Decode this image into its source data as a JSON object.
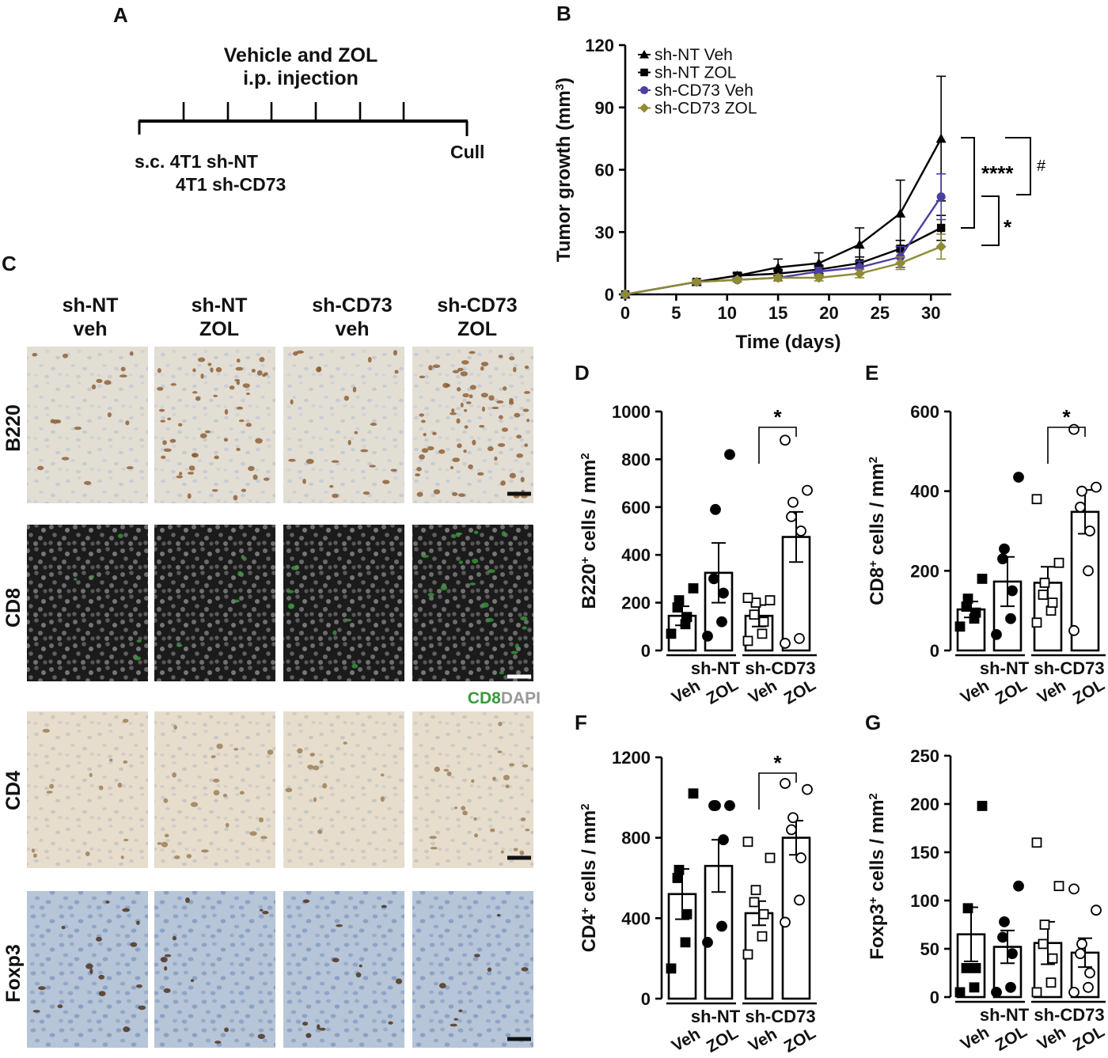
{
  "panel_a": {
    "letter": "A",
    "line1": "Vehicle and ZOL",
    "line2": "i.p. injection",
    "start1": "s.c. 4T1 sh-NT",
    "start2": "4T1 sh-CD73",
    "end": "Cull"
  },
  "panel_c": {
    "letter": "C",
    "columns": [
      {
        "line1": "sh-NT",
        "line2": "veh"
      },
      {
        "line1": "sh-NT",
        "line2": "ZOL"
      },
      {
        "line1": "sh-CD73",
        "line2": "veh"
      },
      {
        "line1": "sh-CD73",
        "line2": "ZOL"
      }
    ],
    "rows": [
      "B220",
      "CD8",
      "CD4",
      "Foxp3"
    ],
    "legend_cd8": "CD8",
    "legend_dapi": "DAPI",
    "colors": {
      "ihc_bg": "#e4e0d8",
      "if_bg": "#1c1c1c",
      "foxp3_bg": "#aebfd6",
      "cd8_green": "#3a9a3a",
      "dapi_text": "#999999"
    }
  },
  "chart_data": [
    {
      "panel": "B",
      "type": "line",
      "xlabel": "Time (days)",
      "ylabel": "Tumor growth (mm",
      "ylabel_sup": "3",
      "ylabel_end": ")",
      "xlim": [
        0,
        32
      ],
      "ylim": [
        0,
        120
      ],
      "xticks": [
        0,
        5,
        10,
        15,
        20,
        25,
        30
      ],
      "yticks": [
        0,
        30,
        60,
        90,
        120
      ],
      "x": [
        0,
        7,
        11,
        15,
        19,
        23,
        27,
        31
      ],
      "legend_position": "top-left",
      "series": [
        {
          "name": "sh-NT Veh",
          "marker": "triangle",
          "color": "#000000",
          "values": [
            0,
            6,
            9,
            13,
            15,
            24,
            39,
            75
          ],
          "err": [
            0,
            1,
            1.5,
            4,
            5,
            8,
            16,
            30
          ]
        },
        {
          "name": "sh-NT ZOL",
          "marker": "square",
          "color": "#000000",
          "values": [
            0,
            6,
            9,
            10,
            12,
            15,
            22,
            32
          ],
          "err": [
            0,
            1,
            1.2,
            2,
            2,
            3,
            4,
            6
          ]
        },
        {
          "name": "sh-CD73 Veh",
          "marker": "circle",
          "color": "#4b3fa0",
          "values": [
            0,
            6,
            7,
            8,
            11,
            13,
            18,
            47
          ],
          "err": [
            0,
            1,
            1,
            1.5,
            2,
            3,
            5,
            11
          ]
        },
        {
          "name": "sh-CD73 ZOL",
          "marker": "diamond",
          "color": "#8f8a34",
          "values": [
            0,
            6,
            7,
            8,
            8,
            10,
            15,
            23
          ],
          "err": [
            0,
            1,
            1,
            1.5,
            1.5,
            2,
            3,
            6
          ]
        }
      ],
      "annotations": [
        "****",
        "#",
        "*"
      ]
    },
    {
      "panel": "D",
      "type": "bar",
      "ylabel": "B220",
      "ylabel_sup": "+",
      "ylabel_end": " cells / mm",
      "ylabel_sup2": "2",
      "ylim": [
        0,
        1000
      ],
      "yticks": [
        0,
        200,
        400,
        600,
        800,
        1000
      ],
      "groups": [
        "sh-NT",
        "sh-CD73"
      ],
      "categories": [
        "Veh",
        "ZOL",
        "Veh",
        "ZOL"
      ],
      "values": [
        145,
        325,
        145,
        475
      ],
      "err": [
        40,
        125,
        45,
        105
      ],
      "points": [
        [
          70,
          110,
          140,
          180,
          210,
          260
        ],
        [
          60,
          120,
          240,
          300,
          590,
          820
        ],
        [
          40,
          70,
          120,
          150,
          200,
          210,
          220
        ],
        [
          30,
          50,
          500,
          560,
          620,
          670,
          880
        ]
      ],
      "markers": [
        "square-filled",
        "circle-filled",
        "square-open",
        "circle-open"
      ],
      "significance": "*"
    },
    {
      "panel": "E",
      "type": "bar",
      "ylabel": "CD8",
      "ylabel_sup": "+",
      "ylabel_end": " cells / mm",
      "ylabel_sup2": "2",
      "ylim": [
        0,
        600
      ],
      "yticks": [
        0,
        200,
        400,
        600
      ],
      "groups": [
        "sh-NT",
        "sh-CD73"
      ],
      "categories": [
        "Veh",
        "ZOL",
        "Veh",
        "ZOL"
      ],
      "values": [
        103,
        173,
        170,
        348
      ],
      "err": [
        20,
        62,
        40,
        55
      ],
      "points": [
        [
          60,
          80,
          95,
          110,
          130,
          180
        ],
        [
          40,
          80,
          150,
          230,
          255,
          435
        ],
        [
          70,
          100,
          120,
          140,
          170,
          220,
          380
        ],
        [
          50,
          200,
          300,
          360,
          400,
          410,
          555
        ]
      ],
      "markers": [
        "square-filled",
        "circle-filled",
        "square-open",
        "circle-open"
      ],
      "significance": "*"
    },
    {
      "panel": "F",
      "type": "bar",
      "ylabel": "CD4",
      "ylabel_sup": "+",
      "ylabel_end": " cells / mm",
      "ylabel_sup2": "2",
      "ylim": [
        0,
        1200
      ],
      "yticks": [
        0,
        400,
        800,
        1200
      ],
      "groups": [
        "sh-NT",
        "sh-CD73"
      ],
      "categories": [
        "Veh",
        "ZOL",
        "Veh",
        "ZOL"
      ],
      "values": [
        520,
        660,
        425,
        800
      ],
      "err": [
        125,
        130,
        60,
        85
      ],
      "points": [
        [
          150,
          280,
          420,
          600,
          640,
          1020
        ],
        [
          280,
          360,
          790,
          960,
          960,
          960
        ],
        [
          220,
          310,
          420,
          480,
          540,
          700,
          780
        ],
        [
          380,
          490,
          700,
          840,
          900,
          1040,
          1070
        ]
      ],
      "markers": [
        "square-filled",
        "circle-filled",
        "square-open",
        "circle-open"
      ],
      "significance": "*"
    },
    {
      "panel": "G",
      "type": "bar",
      "ylabel": "Foxp3",
      "ylabel_sup": "+",
      "ylabel_end": " cells / mm",
      "ylabel_sup2": "2",
      "ylim": [
        0,
        250
      ],
      "yticks": [
        0,
        50,
        100,
        150,
        200,
        250
      ],
      "groups": [
        "sh-NT",
        "sh-CD73"
      ],
      "categories": [
        "Veh",
        "ZOL",
        "Veh",
        "ZOL"
      ],
      "values": [
        65,
        52,
        56,
        46
      ],
      "err": [
        28,
        17,
        22,
        15
      ],
      "points": [
        [
          5,
          10,
          30,
          30,
          92,
          198
        ],
        [
          5,
          10,
          45,
          62,
          78,
          115
        ],
        [
          5,
          15,
          40,
          55,
          75,
          115,
          160
        ],
        [
          5,
          10,
          25,
          45,
          55,
          90,
          112
        ]
      ],
      "markers": [
        "square-filled",
        "circle-filled",
        "square-open",
        "circle-open"
      ],
      "significance": ""
    }
  ]
}
